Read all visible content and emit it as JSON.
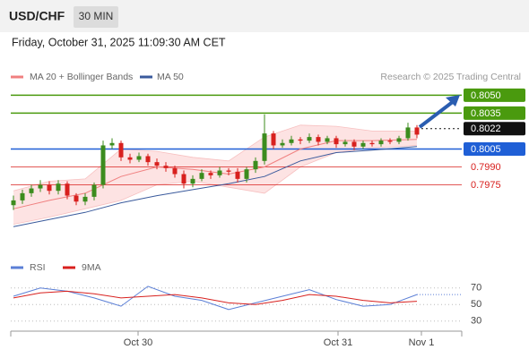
{
  "chart_data": {
    "type": "candlestick",
    "title": "USD/CHF",
    "timeframe": "30 MIN",
    "subtitle": "Friday, October 31, 2025 11:09:30 AM CET",
    "credit": "Research © 2025 Trading Central",
    "up_color": "#3c8c1e",
    "down_color": "#d8201e",
    "x": [
      1,
      2,
      3,
      4,
      5,
      6,
      7,
      8,
      9,
      10,
      11,
      12,
      13,
      14,
      15,
      16,
      17,
      18,
      19,
      20,
      21,
      22,
      23,
      24,
      25,
      26,
      27,
      28,
      29,
      30,
      31,
      32,
      33,
      34,
      35,
      36,
      37,
      38,
      39,
      40,
      41,
      42,
      43,
      44,
      45,
      46
    ],
    "open": [
      0.7958,
      0.7962,
      0.7968,
      0.7972,
      0.7975,
      0.797,
      0.7976,
      0.7966,
      0.7961,
      0.7965,
      0.7975,
      0.8008,
      0.801,
      0.7998,
      0.7996,
      0.7999,
      0.7994,
      0.7991,
      0.7989,
      0.7984,
      0.7976,
      0.798,
      0.7985,
      0.7983,
      0.7987,
      0.7986,
      0.798,
      0.7988,
      0.7995,
      0.8018,
      0.8008,
      0.801,
      0.8013,
      0.8012,
      0.8015,
      0.8011,
      0.8014,
      0.8009,
      0.8011,
      0.8007,
      0.801,
      0.8009,
      0.8012,
      0.8011,
      0.8014,
      0.8023
    ],
    "high": [
      0.7966,
      0.7971,
      0.7975,
      0.7979,
      0.7978,
      0.7979,
      0.7978,
      0.7968,
      0.7968,
      0.7977,
      0.8012,
      0.8014,
      0.8012,
      0.8001,
      0.8002,
      0.8001,
      0.7997,
      0.7994,
      0.7991,
      0.7987,
      0.7983,
      0.7988,
      0.7987,
      0.799,
      0.7989,
      0.7989,
      0.799,
      0.7998,
      0.8034,
      0.802,
      0.8013,
      0.8016,
      0.8015,
      0.8018,
      0.8017,
      0.8016,
      0.8016,
      0.8013,
      0.8013,
      0.8012,
      0.8012,
      0.8014,
      0.8014,
      0.8016,
      0.8027,
      0.8025
    ],
    "low": [
      0.7954,
      0.7959,
      0.7965,
      0.7969,
      0.7967,
      0.7967,
      0.7963,
      0.7958,
      0.7958,
      0.7962,
      0.7972,
      0.8005,
      0.7995,
      0.7993,
      0.7994,
      0.7991,
      0.7988,
      0.7986,
      0.7981,
      0.7972,
      0.7973,
      0.7978,
      0.798,
      0.7981,
      0.7983,
      0.7977,
      0.7977,
      0.7985,
      0.7992,
      0.8005,
      0.8006,
      0.8008,
      0.8009,
      0.801,
      0.8008,
      0.8009,
      0.8006,
      0.8007,
      0.8004,
      0.8005,
      0.8007,
      0.8007,
      0.8009,
      0.8009,
      0.8012,
      0.8014
    ],
    "close": [
      0.7962,
      0.7968,
      0.7972,
      0.7975,
      0.797,
      0.7976,
      0.7966,
      0.7961,
      0.7965,
      0.7975,
      0.8008,
      0.801,
      0.7998,
      0.7996,
      0.7999,
      0.7994,
      0.7991,
      0.7989,
      0.7984,
      0.7976,
      0.798,
      0.7985,
      0.7983,
      0.7987,
      0.7986,
      0.798,
      0.7988,
      0.7995,
      0.8018,
      0.8008,
      0.801,
      0.8013,
      0.8012,
      0.8015,
      0.8011,
      0.8014,
      0.8009,
      0.8011,
      0.8007,
      0.801,
      0.8009,
      0.8012,
      0.8011,
      0.8014,
      0.8023,
      0.8017
    ],
    "xlim": [
      0.5,
      50.5
    ],
    "ylim": [
      0.792,
      0.806
    ],
    "xticks": [
      {
        "value": 14.9,
        "label": "Oct 30"
      },
      {
        "value": 37.2,
        "label": "Oct 31"
      },
      {
        "value": 46.5,
        "label": "Nov 1"
      }
    ],
    "indicators": {
      "x": [
        1,
        5,
        9,
        13,
        17,
        21,
        25,
        29,
        33,
        37,
        41,
        46
      ],
      "bands": {
        "name": "MA 20 + Bollinger Bands",
        "color": "#f08080",
        "fill": "#fde3e3",
        "ma": [
          0.7955,
          0.7962,
          0.7968,
          0.7982,
          0.799,
          0.7988,
          0.7984,
          0.799,
          0.8005,
          0.8012,
          0.8012,
          0.8013
        ],
        "upper": [
          0.797,
          0.7978,
          0.798,
          0.8005,
          0.8003,
          0.7998,
          0.7995,
          0.8015,
          0.8025,
          0.8024,
          0.802,
          0.802
        ],
        "lower": [
          0.7942,
          0.7948,
          0.7955,
          0.7962,
          0.7975,
          0.7978,
          0.7973,
          0.7968,
          0.799,
          0.8002,
          0.8006,
          0.8008
        ]
      },
      "ma50": {
        "name": "MA 50",
        "color": "#3a5a9c",
        "values": [
          0.794,
          0.7946,
          0.7952,
          0.796,
          0.7966,
          0.7971,
          0.7976,
          0.7982,
          0.7995,
          0.8002,
          0.8004,
          0.8007
        ]
      }
    },
    "levels": [
      {
        "price": {
          "value": 0.805,
          "label": "0.8050"
        },
        "color": "#4a9a0e",
        "boxed": true,
        "dotted": false
      },
      {
        "price": {
          "value": 0.8035,
          "label": "0.8035"
        },
        "color": "#4a9a0e",
        "boxed": true,
        "dotted": false
      },
      {
        "price": {
          "value": 0.8022,
          "label": "0.8022"
        },
        "color": "#111111",
        "boxed": true,
        "dotted": true
      },
      {
        "price": {
          "value": 0.8005,
          "label": "0.8005"
        },
        "color": "#1f5fd6",
        "boxed": true,
        "dotted": false
      },
      {
        "price": {
          "value": 0.799,
          "label": "0.7990"
        },
        "color": "#d8201e",
        "boxed": false,
        "dotted": false
      },
      {
        "price": {
          "value": 0.7975,
          "label": "0.7975"
        },
        "color": "#d8201e",
        "boxed": false,
        "dotted": false
      }
    ],
    "rsi": {
      "ylim": [
        20,
        80
      ],
      "yticks": [
        70,
        50,
        30
      ],
      "x": [
        1,
        4,
        7,
        10,
        13,
        16,
        19,
        22,
        25,
        28,
        31,
        34,
        37,
        40,
        43,
        46
      ],
      "series": [
        {
          "name": "RSI",
          "color": "#5b7fd6",
          "values": [
            60,
            70,
            66,
            58,
            48,
            72,
            60,
            55,
            44,
            52,
            60,
            68,
            56,
            48,
            50,
            62
          ]
        },
        {
          "name": "9MA",
          "color": "#d8201e",
          "values": [
            58,
            64,
            66,
            63,
            58,
            60,
            62,
            58,
            52,
            50,
            55,
            62,
            60,
            55,
            52,
            54
          ]
        }
      ]
    }
  }
}
